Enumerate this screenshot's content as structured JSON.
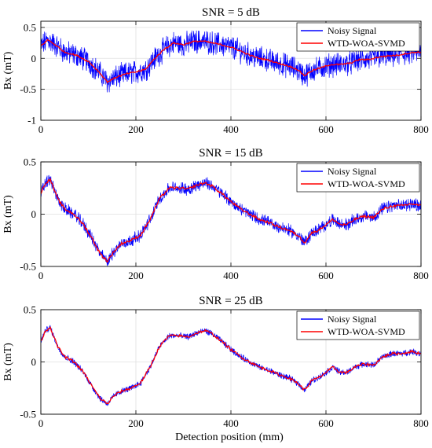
{
  "figure": {
    "xlabel": "Detection position (mm)"
  },
  "colors": {
    "noisy": "#0000ff",
    "denoised": "#ff0000",
    "grid": "#e0e0e0"
  },
  "chart_data": [
    {
      "type": "line",
      "title": "SNR = 5 dB",
      "xlabel": "",
      "ylabel": "Bx (mT)",
      "xlim": [
        0,
        800
      ],
      "ylim": [
        -1,
        0.6
      ],
      "xticks": [
        0,
        200,
        400,
        600,
        800
      ],
      "yticks": [
        0.5,
        0,
        -0.5,
        -1
      ],
      "ytick_labels": [
        "0.5",
        "0",
        "-0.5",
        "-1"
      ],
      "noise_amplitude": 0.16,
      "grid": true,
      "legend": "top-right",
      "series": [
        {
          "name": "Noisy Signal",
          "x": [
            0,
            15,
            30,
            50,
            75,
            100,
            120,
            140,
            160,
            180,
            200,
            220,
            240,
            260,
            280,
            300,
            320,
            340,
            360,
            380,
            400,
            420,
            440,
            460,
            480,
            500,
            520,
            540,
            555,
            570,
            590,
            610,
            630,
            650,
            670,
            690,
            710,
            730,
            750,
            770,
            790,
            800
          ],
          "y": [
            0.2,
            0.3,
            0.22,
            0.1,
            0.05,
            -0.05,
            -0.2,
            -0.38,
            -0.3,
            -0.25,
            -0.22,
            -0.18,
            0.0,
            0.15,
            0.25,
            0.22,
            0.27,
            0.28,
            0.25,
            0.22,
            0.18,
            0.12,
            0.05,
            0.0,
            -0.03,
            -0.08,
            -0.12,
            -0.18,
            -0.28,
            -0.2,
            -0.15,
            -0.1,
            -0.1,
            -0.08,
            -0.02,
            -0.02,
            0.02,
            0.04,
            0.05,
            0.08,
            0.1,
            0.1
          ]
        },
        {
          "name": "WTD-WOA-SVMD",
          "x": [
            0,
            15,
            30,
            50,
            75,
            100,
            120,
            140,
            160,
            180,
            200,
            220,
            240,
            260,
            280,
            300,
            320,
            340,
            360,
            380,
            400,
            420,
            440,
            460,
            480,
            500,
            520,
            540,
            555,
            570,
            590,
            610,
            630,
            650,
            670,
            690,
            710,
            730,
            750,
            770,
            790,
            800
          ],
          "y": [
            0.2,
            0.3,
            0.22,
            0.1,
            0.05,
            -0.05,
            -0.2,
            -0.38,
            -0.3,
            -0.25,
            -0.22,
            -0.18,
            0.0,
            0.15,
            0.25,
            0.22,
            0.27,
            0.28,
            0.25,
            0.22,
            0.18,
            0.12,
            0.05,
            0.0,
            -0.03,
            -0.08,
            -0.12,
            -0.18,
            -0.28,
            -0.2,
            -0.15,
            -0.1,
            -0.1,
            -0.08,
            -0.02,
            -0.02,
            0.02,
            0.04,
            0.05,
            0.08,
            0.1,
            0.1
          ]
        }
      ]
    },
    {
      "type": "line",
      "title": "SNR = 15 dB",
      "xlabel": "",
      "ylabel": "Bx (mT)",
      "xlim": [
        0,
        800
      ],
      "ylim": [
        -0.5,
        0.5
      ],
      "xticks": [
        0,
        200,
        400,
        600,
        800
      ],
      "yticks": [
        0.5,
        0,
        -0.5
      ],
      "ytick_labels": [
        "0.5",
        "0",
        "-0.5"
      ],
      "noise_amplitude": 0.05,
      "grid": true,
      "legend": "top-right",
      "series": [
        {
          "name": "Noisy Signal",
          "x": [
            0,
            10,
            20,
            35,
            50,
            70,
            90,
            110,
            125,
            140,
            155,
            170,
            190,
            210,
            230,
            250,
            270,
            290,
            310,
            330,
            345,
            360,
            380,
            400,
            420,
            440,
            460,
            480,
            500,
            520,
            540,
            555,
            570,
            585,
            600,
            615,
            630,
            645,
            660,
            680,
            700,
            720,
            740,
            760,
            780,
            800
          ],
          "y": [
            0.2,
            0.3,
            0.33,
            0.15,
            0.05,
            0.0,
            -0.1,
            -0.25,
            -0.38,
            -0.45,
            -0.35,
            -0.28,
            -0.25,
            -0.2,
            -0.05,
            0.15,
            0.25,
            0.25,
            0.24,
            0.28,
            0.3,
            0.27,
            0.2,
            0.12,
            0.05,
            0.0,
            -0.05,
            -0.08,
            -0.12,
            -0.15,
            -0.2,
            -0.27,
            -0.18,
            -0.15,
            -0.1,
            -0.05,
            -0.1,
            -0.1,
            -0.05,
            -0.02,
            -0.03,
            0.05,
            0.08,
            0.08,
            0.1,
            0.08
          ]
        },
        {
          "name": "WTD-WOA-SVMD",
          "x": [
            0,
            10,
            20,
            35,
            50,
            70,
            90,
            110,
            125,
            140,
            155,
            170,
            190,
            210,
            230,
            250,
            270,
            290,
            310,
            330,
            345,
            360,
            380,
            400,
            420,
            440,
            460,
            480,
            500,
            520,
            540,
            555,
            570,
            585,
            600,
            615,
            630,
            645,
            660,
            680,
            700,
            720,
            740,
            760,
            780,
            800
          ],
          "y": [
            0.2,
            0.3,
            0.33,
            0.15,
            0.05,
            0.0,
            -0.1,
            -0.25,
            -0.38,
            -0.45,
            -0.35,
            -0.28,
            -0.25,
            -0.2,
            -0.05,
            0.15,
            0.25,
            0.25,
            0.24,
            0.28,
            0.3,
            0.27,
            0.2,
            0.12,
            0.05,
            0.0,
            -0.05,
            -0.08,
            -0.12,
            -0.15,
            -0.2,
            -0.27,
            -0.18,
            -0.15,
            -0.1,
            -0.05,
            -0.1,
            -0.1,
            -0.05,
            -0.02,
            -0.03,
            0.05,
            0.08,
            0.08,
            0.1,
            0.08
          ]
        }
      ]
    },
    {
      "type": "line",
      "title": "SNR = 25 dB",
      "xlabel": "Detection position (mm)",
      "ylabel": "Bx (mT)",
      "xlim": [
        0,
        800
      ],
      "ylim": [
        -0.5,
        0.5
      ],
      "xticks": [
        0,
        200,
        400,
        600,
        800
      ],
      "yticks": [
        0.5,
        0,
        -0.5
      ],
      "ytick_labels": [
        "0.5",
        "0",
        "-0.5"
      ],
      "noise_amplitude": 0.025,
      "grid": true,
      "legend": "top-right",
      "series": [
        {
          "name": "Noisy Signal",
          "x": [
            0,
            10,
            20,
            35,
            50,
            70,
            90,
            110,
            125,
            140,
            155,
            170,
            190,
            210,
            230,
            250,
            270,
            290,
            310,
            330,
            345,
            360,
            380,
            400,
            420,
            440,
            460,
            480,
            500,
            520,
            540,
            555,
            570,
            585,
            600,
            615,
            630,
            645,
            660,
            680,
            700,
            720,
            740,
            760,
            780,
            800
          ],
          "y": [
            0.2,
            0.3,
            0.33,
            0.15,
            0.05,
            0.0,
            -0.1,
            -0.25,
            -0.35,
            -0.4,
            -0.32,
            -0.28,
            -0.25,
            -0.2,
            -0.05,
            0.15,
            0.25,
            0.25,
            0.24,
            0.28,
            0.3,
            0.27,
            0.2,
            0.12,
            0.05,
            0.0,
            -0.05,
            -0.08,
            -0.12,
            -0.15,
            -0.2,
            -0.27,
            -0.18,
            -0.15,
            -0.1,
            -0.05,
            -0.1,
            -0.1,
            -0.05,
            -0.02,
            -0.03,
            0.05,
            0.08,
            0.08,
            0.1,
            0.08
          ]
        },
        {
          "name": "WTD-WOA-SVMD",
          "x": [
            0,
            10,
            20,
            35,
            50,
            70,
            90,
            110,
            125,
            140,
            155,
            170,
            190,
            210,
            230,
            250,
            270,
            290,
            310,
            330,
            345,
            360,
            380,
            400,
            420,
            440,
            460,
            480,
            500,
            520,
            540,
            555,
            570,
            585,
            600,
            615,
            630,
            645,
            660,
            680,
            700,
            720,
            740,
            760,
            780,
            800
          ],
          "y": [
            0.2,
            0.3,
            0.33,
            0.15,
            0.05,
            0.0,
            -0.1,
            -0.25,
            -0.35,
            -0.4,
            -0.32,
            -0.28,
            -0.25,
            -0.2,
            -0.05,
            0.15,
            0.25,
            0.25,
            0.24,
            0.28,
            0.3,
            0.27,
            0.2,
            0.12,
            0.05,
            0.0,
            -0.05,
            -0.08,
            -0.12,
            -0.15,
            -0.2,
            -0.27,
            -0.18,
            -0.15,
            -0.1,
            -0.05,
            -0.1,
            -0.1,
            -0.05,
            -0.02,
            -0.03,
            0.05,
            0.08,
            0.08,
            0.1,
            0.08
          ]
        }
      ]
    }
  ]
}
